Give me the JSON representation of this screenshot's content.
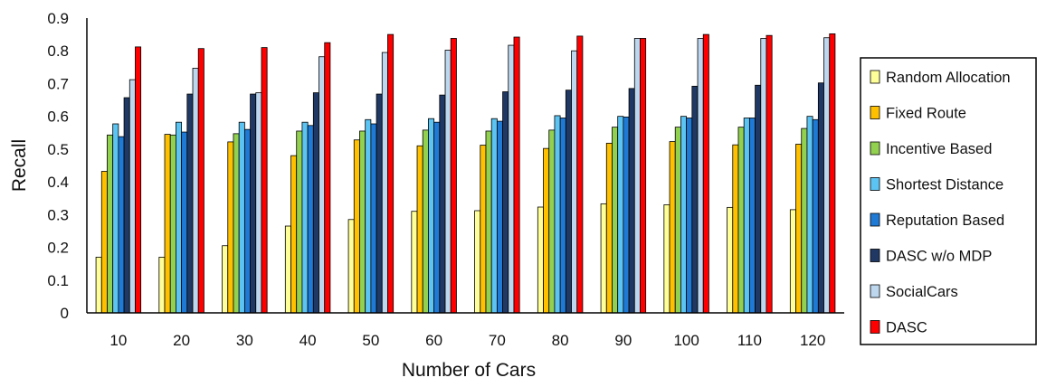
{
  "chart_data": {
    "type": "bar",
    "xlabel": "Number of Cars",
    "ylabel": "Recall",
    "ylim": [
      0,
      0.9
    ],
    "yticks": [
      "0",
      "0.1",
      "0.2",
      "0.3",
      "0.4",
      "0.5",
      "0.6",
      "0.7",
      "0.8",
      "0.9"
    ],
    "grid": false,
    "legend_position": "right",
    "categories": [
      "10",
      "20",
      "30",
      "40",
      "50",
      "60",
      "70",
      "80",
      "90",
      "100",
      "110",
      "120"
    ],
    "series": [
      {
        "name": "Random Allocation",
        "color": "#ffff99",
        "values": [
          0.17,
          0.17,
          0.205,
          0.265,
          0.285,
          0.31,
          0.312,
          0.323,
          0.333,
          0.33,
          0.322,
          0.315
        ]
      },
      {
        "name": "Fixed Route",
        "color": "#ffc000",
        "values": [
          0.432,
          0.545,
          0.522,
          0.48,
          0.528,
          0.51,
          0.512,
          0.502,
          0.518,
          0.523,
          0.513,
          0.515
        ]
      },
      {
        "name": "Incentive Based",
        "color": "#92d050",
        "values": [
          0.543,
          0.543,
          0.547,
          0.555,
          0.555,
          0.558,
          0.555,
          0.558,
          0.567,
          0.567,
          0.567,
          0.563
        ]
      },
      {
        "name": "Shortest Distance",
        "color": "#5cc4f2",
        "values": [
          0.577,
          0.582,
          0.582,
          0.582,
          0.59,
          0.593,
          0.593,
          0.602,
          0.6,
          0.6,
          0.595,
          0.6
        ]
      },
      {
        "name": "Reputation Based",
        "color": "#1f7ad6",
        "values": [
          0.538,
          0.552,
          0.56,
          0.572,
          0.577,
          0.582,
          0.585,
          0.595,
          0.598,
          0.595,
          0.595,
          0.59
        ]
      },
      {
        "name": "DASC w/o MDP",
        "color": "#1f3864",
        "values": [
          0.657,
          0.668,
          0.668,
          0.672,
          0.668,
          0.665,
          0.675,
          0.68,
          0.685,
          0.692,
          0.695,
          0.702
        ]
      },
      {
        "name": "SocialCars",
        "color": "#bdd7ee",
        "values": [
          0.712,
          0.747,
          0.672,
          0.782,
          0.795,
          0.802,
          0.817,
          0.8,
          0.838,
          0.838,
          0.838,
          0.84
        ]
      },
      {
        "name": "DASC",
        "color": "#ff0000",
        "values": [
          0.812,
          0.807,
          0.81,
          0.825,
          0.85,
          0.838,
          0.842,
          0.845,
          0.838,
          0.85,
          0.847,
          0.852
        ]
      }
    ]
  }
}
